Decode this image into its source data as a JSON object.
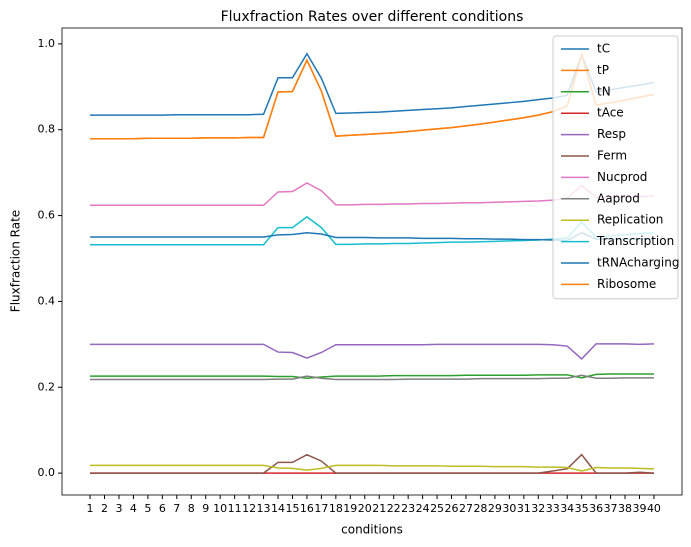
{
  "chart_data": {
    "type": "line",
    "title": "Fluxfraction Rates over different conditions",
    "xlabel": "conditions",
    "ylabel": "Fluxfraction Rate",
    "categories": [
      "1",
      "2",
      "3",
      "4",
      "5",
      "6",
      "7",
      "8",
      "9",
      "10",
      "11",
      "12",
      "13",
      "14",
      "15",
      "16",
      "17",
      "18",
      "19",
      "20",
      "21",
      "22",
      "23",
      "24",
      "25",
      "26",
      "27",
      "28",
      "29",
      "30",
      "31",
      "32",
      "33",
      "34",
      "35",
      "36",
      "37",
      "38",
      "39",
      "40"
    ],
    "ylim": [
      -0.051,
      1.037
    ],
    "yticks": [
      {
        "value": 0,
        "label": "0.0"
      },
      0.2,
      0.4,
      0.6,
      0.8,
      {
        "value": 1,
        "label": "1.0"
      }
    ],
    "legend": "upper right",
    "series": [
      {
        "name": "tC",
        "color": "#1f77b4",
        "values": [
          0.834,
          0.834,
          0.834,
          0.834,
          0.834,
          0.834,
          0.835,
          0.835,
          0.835,
          0.835,
          0.835,
          0.835,
          0.836,
          0.921,
          0.921,
          0.977,
          0.92,
          0.838,
          0.839,
          0.84,
          0.841,
          0.843,
          0.845,
          0.847,
          0.849,
          0.851,
          0.854,
          0.857,
          0.86,
          0.863,
          0.866,
          0.87,
          0.874,
          0.88,
          0.975,
          0.888,
          0.893,
          0.899,
          0.904,
          0.91
        ]
      },
      {
        "name": "tP",
        "color": "#ff7f0e",
        "values": [
          0.779,
          0.779,
          0.779,
          0.779,
          0.78,
          0.78,
          0.78,
          0.78,
          0.781,
          0.781,
          0.781,
          0.782,
          0.782,
          0.888,
          0.889,
          0.962,
          0.89,
          0.785,
          0.787,
          0.789,
          0.791,
          0.793,
          0.796,
          0.799,
          0.802,
          0.805,
          0.809,
          0.813,
          0.818,
          0.823,
          0.828,
          0.834,
          0.842,
          0.855,
          0.975,
          0.857,
          0.863,
          0.869,
          0.876,
          0.882
        ]
      },
      {
        "name": "tN",
        "color": "#2ca02c",
        "values": [
          0.226,
          0.226,
          0.226,
          0.226,
          0.226,
          0.226,
          0.226,
          0.226,
          0.226,
          0.226,
          0.226,
          0.226,
          0.226,
          0.225,
          0.225,
          0.221,
          0.224,
          0.226,
          0.226,
          0.226,
          0.226,
          0.227,
          0.227,
          0.227,
          0.227,
          0.227,
          0.228,
          0.228,
          0.228,
          0.228,
          0.228,
          0.229,
          0.229,
          0.229,
          0.222,
          0.23,
          0.231,
          0.231,
          0.231,
          0.231
        ]
      },
      {
        "name": "tAce",
        "color": "#d62728",
        "values": [
          0,
          0,
          0,
          0,
          0,
          0,
          0,
          0,
          0,
          0,
          0,
          0,
          0,
          0,
          0,
          0,
          0,
          0,
          0,
          0,
          0,
          0,
          0,
          0,
          0,
          0,
          0,
          0,
          0,
          0,
          0,
          0,
          0,
          0,
          0,
          0,
          0,
          0,
          0,
          0
        ]
      },
      {
        "name": "Resp",
        "color": "#9467bd",
        "values": [
          0.3,
          0.3,
          0.3,
          0.3,
          0.3,
          0.3,
          0.3,
          0.3,
          0.3,
          0.3,
          0.3,
          0.3,
          0.3,
          0.282,
          0.281,
          0.268,
          0.281,
          0.299,
          0.299,
          0.299,
          0.299,
          0.299,
          0.299,
          0.299,
          0.3,
          0.3,
          0.3,
          0.3,
          0.3,
          0.3,
          0.3,
          0.3,
          0.299,
          0.296,
          0.266,
          0.301,
          0.301,
          0.301,
          0.3,
          0.301
        ]
      },
      {
        "name": "Ferm",
        "color": "#8c564b",
        "values": [
          0,
          0,
          0,
          0,
          0,
          0,
          0,
          0,
          0,
          0,
          0,
          0,
          0,
          0.025,
          0.025,
          0.043,
          0.028,
          0,
          0,
          0,
          0,
          0,
          0,
          0,
          0,
          0,
          0,
          0,
          0,
          0,
          0,
          0,
          0.005,
          0.01,
          0.043,
          0,
          0,
          0,
          0.002,
          0
        ]
      },
      {
        "name": "Nucprod",
        "color": "#e377c2",
        "values": [
          0.624,
          0.624,
          0.624,
          0.624,
          0.624,
          0.624,
          0.624,
          0.624,
          0.624,
          0.624,
          0.624,
          0.624,
          0.624,
          0.655,
          0.656,
          0.676,
          0.658,
          0.625,
          0.625,
          0.626,
          0.626,
          0.627,
          0.627,
          0.628,
          0.628,
          0.629,
          0.63,
          0.63,
          0.631,
          0.632,
          0.633,
          0.634,
          0.636,
          0.64,
          0.67,
          0.642,
          0.643,
          0.643,
          0.644,
          0.645
        ]
      },
      {
        "name": "Aaprod",
        "color": "#7f7f7f",
        "values": [
          0.218,
          0.218,
          0.218,
          0.218,
          0.218,
          0.218,
          0.218,
          0.218,
          0.218,
          0.218,
          0.218,
          0.218,
          0.218,
          0.219,
          0.219,
          0.226,
          0.221,
          0.218,
          0.218,
          0.218,
          0.218,
          0.218,
          0.219,
          0.219,
          0.219,
          0.219,
          0.219,
          0.22,
          0.22,
          0.22,
          0.22,
          0.22,
          0.221,
          0.221,
          0.228,
          0.221,
          0.221,
          0.222,
          0.222,
          0.222
        ]
      },
      {
        "name": "Replication",
        "color": "#bcbd22",
        "values": [
          0.018,
          0.018,
          0.018,
          0.018,
          0.018,
          0.018,
          0.018,
          0.018,
          0.018,
          0.018,
          0.018,
          0.018,
          0.018,
          0.012,
          0.011,
          0.007,
          0.011,
          0.018,
          0.018,
          0.018,
          0.018,
          0.017,
          0.017,
          0.017,
          0.017,
          0.016,
          0.016,
          0.016,
          0.015,
          0.015,
          0.015,
          0.014,
          0.014,
          0.013,
          0.005,
          0.013,
          0.012,
          0.012,
          0.011,
          0.01
        ]
      },
      {
        "name": "Transcription",
        "color": "#17becf",
        "values": [
          0.532,
          0.532,
          0.532,
          0.532,
          0.532,
          0.532,
          0.532,
          0.532,
          0.532,
          0.532,
          0.532,
          0.532,
          0.532,
          0.572,
          0.572,
          0.597,
          0.572,
          0.533,
          0.533,
          0.534,
          0.534,
          0.535,
          0.535,
          0.536,
          0.537,
          0.538,
          0.538,
          0.539,
          0.54,
          0.541,
          0.542,
          0.543,
          0.545,
          0.548,
          0.585,
          0.55,
          0.553,
          0.555,
          0.558,
          0.56
        ]
      },
      {
        "name": "tRNAcharging",
        "color": "#1f77b4",
        "values": [
          0.55,
          0.55,
          0.55,
          0.55,
          0.55,
          0.55,
          0.55,
          0.55,
          0.55,
          0.55,
          0.55,
          0.55,
          0.55,
          0.555,
          0.556,
          0.56,
          0.557,
          0.549,
          0.549,
          0.549,
          0.548,
          0.548,
          0.548,
          0.547,
          0.547,
          0.547,
          0.546,
          0.546,
          0.545,
          0.545,
          0.544,
          0.544,
          0.543,
          0.542,
          0.56,
          0.545,
          0.545,
          0.545,
          0.545,
          0.545
        ]
      },
      {
        "name": "Ribosome",
        "color": "#ff7f0e",
        "values": [
          0.779,
          0.779,
          0.779,
          0.779,
          0.78,
          0.78,
          0.78,
          0.78,
          0.781,
          0.781,
          0.781,
          0.782,
          0.782,
          0.888,
          0.889,
          0.962,
          0.89,
          0.785,
          0.787,
          0.789,
          0.791,
          0.793,
          0.796,
          0.799,
          0.802,
          0.805,
          0.809,
          0.813,
          0.818,
          0.823,
          0.828,
          0.834,
          0.842,
          0.855,
          0.975,
          0.857,
          0.863,
          0.869,
          0.876,
          0.882
        ]
      }
    ]
  }
}
